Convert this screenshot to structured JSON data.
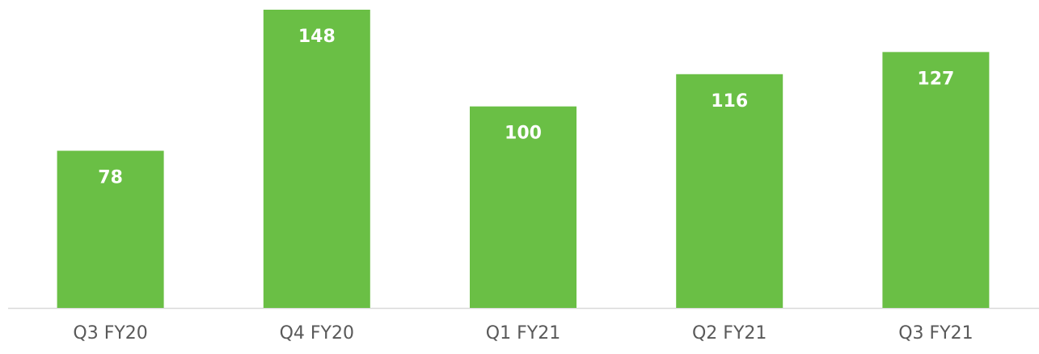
{
  "chart_data": {
    "type": "bar",
    "categories": [
      "Q3 FY20",
      "Q4 FY20",
      "Q1 FY21",
      "Q2 FY21",
      "Q3 FY21"
    ],
    "values": [
      78,
      148,
      100,
      116,
      127
    ],
    "color": "#6abf45"
  }
}
